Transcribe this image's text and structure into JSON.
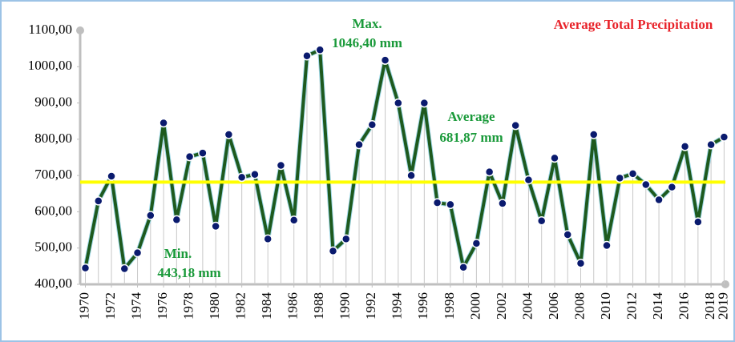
{
  "chart_data": {
    "type": "line",
    "title": "Average Total Precipitation",
    "annotations": [
      "Max.",
      "1046,40 mm",
      "Average",
      "681,87 mm",
      "Min.",
      "443,18 mm"
    ],
    "x": [
      1970,
      1971,
      1972,
      1973,
      1974,
      1975,
      1976,
      1977,
      1978,
      1979,
      1980,
      1981,
      1982,
      1983,
      1984,
      1985,
      1986,
      1987,
      1988,
      1989,
      1990,
      1991,
      1992,
      1993,
      1994,
      1995,
      1996,
      1997,
      1998,
      1999,
      2000,
      2001,
      2002,
      2003,
      2004,
      2005,
      2006,
      2007,
      2008,
      2009,
      2010,
      2011,
      2012,
      2013,
      2014,
      2015,
      2016,
      2017,
      2018,
      2019
    ],
    "values": [
      445,
      630,
      698,
      443.18,
      487,
      590,
      845,
      578,
      752,
      762,
      560,
      813,
      695,
      703,
      525,
      728,
      577,
      1030,
      1046.4,
      492,
      525,
      785,
      840,
      1018,
      900,
      700,
      900,
      625,
      620,
      447,
      513,
      710,
      623,
      838,
      688,
      575,
      748,
      537,
      458,
      813,
      507,
      693,
      705,
      675,
      633,
      668,
      780,
      572,
      785,
      806
    ],
    "average": 681.87,
    "color": "#1e5a1e",
    "marker_color": "#0a1a6e",
    "average_color": "#ffff00",
    "xlim": [
      1969.6,
      2019.1
    ],
    "xticks": [
      1970,
      1972,
      1974,
      1976,
      1978,
      1980,
      1982,
      1984,
      1986,
      1988,
      1990,
      1992,
      1994,
      1996,
      1998,
      2000,
      2002,
      2004,
      2006,
      2008,
      2010,
      2012,
      2014,
      2016,
      2018,
      2019
    ],
    "ylim": [
      400,
      1100
    ],
    "yticks": [
      {
        "value": 400,
        "label": "400,00"
      },
      {
        "value": 500,
        "label": "500,00"
      },
      {
        "value": 600,
        "label": "600,00"
      },
      {
        "value": 700,
        "label": "700,00"
      },
      {
        "value": 800,
        "label": "800,00"
      },
      {
        "value": 900,
        "label": "900,00"
      },
      {
        "value": 1000,
        "label": "1000,00"
      },
      {
        "value": 1100,
        "label": "1100,00"
      }
    ],
    "drop_lines": true
  }
}
